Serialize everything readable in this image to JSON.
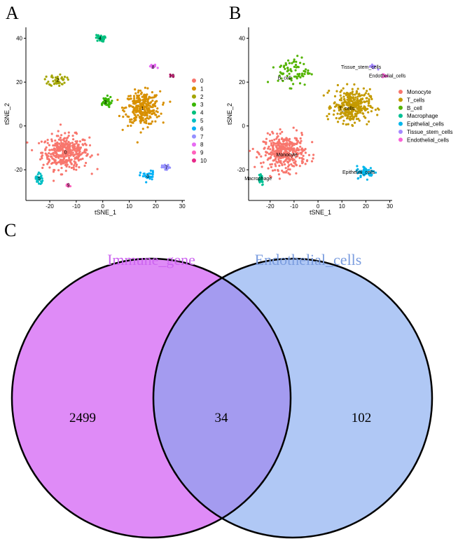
{
  "panels": {
    "a": {
      "letter": "A"
    },
    "b": {
      "letter": "B"
    },
    "c": {
      "letter": "C"
    }
  },
  "chart_data": [
    {
      "type": "scatter",
      "title": "",
      "xlabel": "tSNE_1",
      "ylabel": "tSNE_2",
      "xlim": [
        -29,
        31
      ],
      "ylim": [
        -34,
        45
      ],
      "xticks": [
        -20,
        -10,
        0,
        10,
        20,
        30
      ],
      "yticks": [
        -20,
        0,
        20,
        40
      ],
      "legend_position": "right",
      "clusters": [
        {
          "name": "0",
          "color": "#F8766D",
          "center": [
            -14,
            -12
          ],
          "spread": [
            8,
            7
          ],
          "count": 380,
          "label": "0"
        },
        {
          "name": "1",
          "color": "#D89000",
          "center": [
            15,
            8
          ],
          "spread": [
            6,
            7
          ],
          "count": 300,
          "label": "1"
        },
        {
          "name": "2",
          "color": "#A3A500",
          "center": [
            -17,
            21
          ],
          "spread": [
            3,
            2.5
          ],
          "count": 45,
          "label": "2"
        },
        {
          "name": "3",
          "color": "#39B600",
          "center": [
            1,
            11
          ],
          "spread": [
            2.2,
            2.2
          ],
          "count": 40,
          "label": "3"
        },
        {
          "name": "4",
          "color": "#00BF7D",
          "center": [
            -1,
            40
          ],
          "spread": [
            1.5,
            1.4
          ],
          "count": 35,
          "label": "4"
        },
        {
          "name": "5",
          "color": "#00BFC4",
          "center": [
            -24,
            -24
          ],
          "spread": [
            1.2,
            2.8
          ],
          "count": 28,
          "label": "5"
        },
        {
          "name": "6",
          "color": "#00B0F6",
          "center": [
            17,
            -23
          ],
          "spread": [
            2.5,
            2.2
          ],
          "count": 30,
          "label": "6"
        },
        {
          "name": "7",
          "color": "#9590FF",
          "center": [
            24,
            -19
          ],
          "spread": [
            1.4,
            1.2
          ],
          "count": 25,
          "label": "7"
        },
        {
          "name": "8",
          "color": "#E76BF3",
          "center": [
            19,
            27
          ],
          "spread": [
            1.4,
            1.0
          ],
          "count": 14,
          "label": "8"
        },
        {
          "name": "9",
          "color": "#FF62BC",
          "center": [
            -13,
            -27
          ],
          "spread": [
            1.3,
            0.8
          ],
          "count": 12,
          "label": "9"
        },
        {
          "name": "10",
          "color": "#E7298A",
          "center": [
            26,
            23
          ],
          "spread": [
            0.9,
            0.8
          ],
          "count": 6,
          "label": "10"
        }
      ]
    },
    {
      "type": "scatter",
      "title": "",
      "xlabel": "tSNE_1",
      "ylabel": "tSNE_2",
      "xlim": [
        -29,
        31
      ],
      "ylim": [
        -34,
        45
      ],
      "xticks": [
        -20,
        -10,
        0,
        10,
        20,
        30
      ],
      "yticks": [
        -20,
        0,
        20,
        40
      ],
      "legend_position": "right",
      "clusters": [
        {
          "name": "Monocyte",
          "color": "#F8766D",
          "center": [
            -14,
            -12
          ],
          "spread": [
            8,
            7
          ],
          "count": 380,
          "label": "Monocyte",
          "label_at": [
            -13,
            -13
          ]
        },
        {
          "name": "T_cells",
          "color": "#C49A00",
          "center": [
            14,
            9
          ],
          "spread": [
            7,
            7
          ],
          "count": 330,
          "label": "T_cells",
          "label_at": [
            12,
            8
          ]
        },
        {
          "name": "B_cell",
          "color": "#53B400",
          "center": [
            -10,
            25
          ],
          "spread": [
            6,
            6
          ],
          "count": 75,
          "label": "B_cell",
          "label_at": [
            -14,
            22
          ]
        },
        {
          "name": "Macrophage",
          "color": "#00C094",
          "center": [
            -24,
            -24
          ],
          "spread": [
            1.2,
            2.8
          ],
          "count": 28,
          "label": "Macrophage",
          "label_at": [
            -25,
            -24
          ]
        },
        {
          "name": "Epithelial_cells",
          "color": "#00B6EB",
          "center": [
            20,
            -21
          ],
          "spread": [
            3.5,
            2.5
          ],
          "count": 55,
          "label": "Epithelial_cells",
          "label_at": [
            17,
            -21
          ]
        },
        {
          "name": "Tissue_stem_cells",
          "color": "#A58AFF",
          "center": [
            23,
            27
          ],
          "spread": [
            1.4,
            1.0
          ],
          "count": 14,
          "label": "Tissue_stem_cells",
          "label_at": [
            18,
            27
          ]
        },
        {
          "name": "Endothelial_cells",
          "color": "#FB61D7",
          "center": [
            28,
            23
          ],
          "spread": [
            0.9,
            0.8
          ],
          "count": 6,
          "label": "Endothelial_cells",
          "label_at": [
            29,
            23
          ]
        }
      ]
    },
    {
      "type": "venn",
      "sets": [
        {
          "name": "Immune_gene",
          "color": "#DF8BF7",
          "title_color": "#CD66F0",
          "only": 2499
        },
        {
          "name": "Endothelial_cells",
          "color": "#B0C8F5",
          "title_color": "#7B9DDF",
          "only": 102
        }
      ],
      "intersection": 34,
      "intersection_color": "#A49BF0"
    }
  ]
}
